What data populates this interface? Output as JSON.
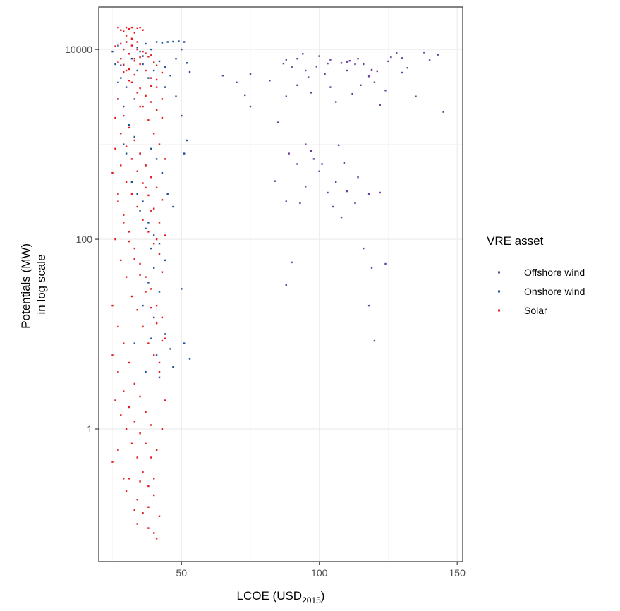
{
  "chart_data": {
    "type": "scatter",
    "title": "",
    "xlabel": "LCOE (USD",
    "xlabel_subscript": "2015",
    "xlabel_suffix": ")",
    "ylabel_line1": "Potentials (MW)",
    "ylabel_line2": "in log scale",
    "xlim": [
      20,
      152
    ],
    "ylim": [
      0.04,
      28000
    ],
    "yscale": "log",
    "x_ticks": [
      50,
      100,
      150
    ],
    "x_tick_labels": [
      "50",
      "100",
      "150"
    ],
    "y_ticks": [
      1,
      100,
      10000
    ],
    "y_tick_labels": [
      "1",
      "100",
      "10000"
    ],
    "grid": true,
    "legend": {
      "title": "VRE asset",
      "position": "right",
      "entries": [
        "Offshore wind",
        "Onshore wind",
        "Solar"
      ]
    },
    "series": [
      {
        "name": "Offshore wind",
        "color": "#6a3d9a",
        "points": [
          [
            65,
            5300
          ],
          [
            70,
            4500
          ],
          [
            73,
            3300
          ],
          [
            75,
            5500
          ],
          [
            75,
            2500
          ],
          [
            82,
            4700
          ],
          [
            85,
            1700
          ],
          [
            88,
            7800
          ],
          [
            88,
            3200
          ],
          [
            90,
            6500
          ],
          [
            92,
            8000
          ],
          [
            95,
            6000
          ],
          [
            97,
            3500
          ],
          [
            100,
            8500
          ],
          [
            102,
            5500
          ],
          [
            104,
            4000
          ],
          [
            106,
            2800
          ],
          [
            108,
            7200
          ],
          [
            110,
            6000
          ],
          [
            112,
            3400
          ],
          [
            114,
            8000
          ],
          [
            116,
            7000
          ],
          [
            118,
            5200
          ],
          [
            120,
            4500
          ],
          [
            122,
            2600
          ],
          [
            125,
            7500
          ],
          [
            128,
            9200
          ],
          [
            130,
            8100
          ],
          [
            132,
            6400
          ],
          [
            135,
            3200
          ],
          [
            138,
            9300
          ],
          [
            140,
            7700
          ],
          [
            143,
            8800
          ],
          [
            145,
            2200
          ],
          [
            124,
            3700
          ],
          [
            119,
            6100
          ],
          [
            111,
            7600
          ],
          [
            103,
            7100
          ],
          [
            96,
            5100
          ],
          [
            92,
            4200
          ],
          [
            87,
            7100
          ],
          [
            89,
            800
          ],
          [
            92,
            620
          ],
          [
            95,
            360
          ],
          [
            98,
            700
          ],
          [
            100,
            520
          ],
          [
            103,
            310
          ],
          [
            105,
            220
          ],
          [
            108,
            170
          ],
          [
            110,
            320
          ],
          [
            114,
            450
          ],
          [
            118,
            300
          ],
          [
            122,
            310
          ],
          [
            84,
            410
          ],
          [
            88,
            250
          ],
          [
            93,
            240
          ],
          [
            97,
            850
          ],
          [
            101,
            620
          ],
          [
            106,
            400
          ],
          [
            109,
            640
          ],
          [
            113,
            240
          ],
          [
            116,
            80
          ],
          [
            119,
            50
          ],
          [
            124,
            55
          ],
          [
            90,
            57
          ],
          [
            88,
            33
          ],
          [
            118,
            20
          ],
          [
            120,
            8.5
          ],
          [
            95,
            1000
          ],
          [
            107,
            980
          ],
          [
            99,
            6600
          ],
          [
            104,
            7800
          ],
          [
            113,
            7000
          ],
          [
            121,
            5900
          ],
          [
            126,
            8300
          ],
          [
            115,
            4200
          ],
          [
            110,
            7400
          ],
          [
            94,
            9000
          ],
          [
            130,
            5700
          ]
        ]
      },
      {
        "name": "Onshore wind",
        "color": "#1f4e9b",
        "points": [
          [
            25,
            9500
          ],
          [
            27,
            11000
          ],
          [
            30,
            12000
          ],
          [
            32,
            8000
          ],
          [
            34,
            6000
          ],
          [
            35,
            9500
          ],
          [
            37,
            11500
          ],
          [
            39,
            10000
          ],
          [
            41,
            12000
          ],
          [
            43,
            11800
          ],
          [
            45,
            12000
          ],
          [
            47,
            12100
          ],
          [
            49,
            12200
          ],
          [
            51,
            12000
          ],
          [
            52,
            7200
          ],
          [
            53,
            5800
          ],
          [
            28,
            6800
          ],
          [
            30,
            4000
          ],
          [
            33,
            3000
          ],
          [
            36,
            7000
          ],
          [
            38,
            5000
          ],
          [
            40,
            6000
          ],
          [
            42,
            7500
          ],
          [
            44,
            4000
          ],
          [
            46,
            5300
          ],
          [
            48,
            3200
          ],
          [
            50,
            2000
          ],
          [
            51,
            800
          ],
          [
            52,
            1100
          ],
          [
            29,
            2500
          ],
          [
            31,
            1600
          ],
          [
            33,
            1200
          ],
          [
            35,
            800
          ],
          [
            37,
            600
          ],
          [
            39,
            900
          ],
          [
            41,
            700
          ],
          [
            43,
            500
          ],
          [
            45,
            300
          ],
          [
            47,
            220
          ],
          [
            35,
            200
          ],
          [
            37,
            130
          ],
          [
            39,
            80
          ],
          [
            40,
            50
          ],
          [
            38,
            35
          ],
          [
            42,
            28
          ],
          [
            36,
            20
          ],
          [
            40,
            15
          ],
          [
            44,
            10
          ],
          [
            46,
            7
          ],
          [
            51,
            8
          ],
          [
            53,
            5.5
          ],
          [
            42,
            3.5
          ],
          [
            47,
            4.5
          ],
          [
            50,
            30
          ],
          [
            39,
            9
          ],
          [
            33,
            8
          ],
          [
            41,
            6
          ],
          [
            37,
            4
          ],
          [
            27,
            3000
          ],
          [
            31,
            9000
          ],
          [
            34,
            10500
          ],
          [
            36,
            8500
          ],
          [
            44,
            6500
          ],
          [
            48,
            8000
          ],
          [
            50,
            10000
          ],
          [
            26,
            7000
          ],
          [
            28,
            5000
          ],
          [
            30,
            800
          ],
          [
            32,
            400
          ],
          [
            34,
            300
          ],
          [
            36,
            250
          ],
          [
            38,
            150
          ],
          [
            40,
            110
          ],
          [
            42,
            90
          ],
          [
            44,
            60
          ],
          [
            27,
            4500
          ],
          [
            29,
            1000
          ]
        ]
      },
      {
        "name": "Solar",
        "color": "#e41a1c",
        "points": [
          [
            27,
            17000
          ],
          [
            28,
            16000
          ],
          [
            29,
            15500
          ],
          [
            30,
            17000
          ],
          [
            31,
            16500
          ],
          [
            32,
            17000
          ],
          [
            33,
            15000
          ],
          [
            34,
            16800
          ],
          [
            35,
            17000
          ],
          [
            36,
            16000
          ],
          [
            30,
            14000
          ],
          [
            32,
            13000
          ],
          [
            34,
            12000
          ],
          [
            29,
            10000
          ],
          [
            31,
            9000
          ],
          [
            33,
            8000
          ],
          [
            35,
            7000
          ],
          [
            37,
            6000
          ],
          [
            39,
            5000
          ],
          [
            41,
            4000
          ],
          [
            43,
            3000
          ],
          [
            28,
            8000
          ],
          [
            30,
            6000
          ],
          [
            32,
            4500
          ],
          [
            34,
            3500
          ],
          [
            36,
            2500
          ],
          [
            38,
            1800
          ],
          [
            40,
            1300
          ],
          [
            42,
            1000
          ],
          [
            44,
            700
          ],
          [
            27,
            3000
          ],
          [
            29,
            2000
          ],
          [
            31,
            1500
          ],
          [
            33,
            1100
          ],
          [
            35,
            800
          ],
          [
            37,
            600
          ],
          [
            39,
            450
          ],
          [
            41,
            350
          ],
          [
            43,
            260
          ],
          [
            26,
            900
          ],
          [
            28,
            600
          ],
          [
            30,
            400
          ],
          [
            32,
            300
          ],
          [
            34,
            220
          ],
          [
            36,
            160
          ],
          [
            38,
            120
          ],
          [
            40,
            90
          ],
          [
            42,
            70
          ],
          [
            25,
            500
          ],
          [
            27,
            300
          ],
          [
            29,
            180
          ],
          [
            31,
            120
          ],
          [
            33,
            80
          ],
          [
            35,
            55
          ],
          [
            37,
            40
          ],
          [
            39,
            30
          ],
          [
            41,
            20
          ],
          [
            43,
            15
          ],
          [
            26,
            100
          ],
          [
            28,
            60
          ],
          [
            30,
            40
          ],
          [
            32,
            25
          ],
          [
            34,
            18
          ],
          [
            36,
            12
          ],
          [
            38,
            8
          ],
          [
            40,
            6
          ],
          [
            42,
            4
          ],
          [
            25,
            20
          ],
          [
            27,
            12
          ],
          [
            29,
            8
          ],
          [
            31,
            5
          ],
          [
            33,
            3
          ],
          [
            35,
            2.2
          ],
          [
            37,
            1.5
          ],
          [
            39,
            1.1
          ],
          [
            25,
            6
          ],
          [
            27,
            4
          ],
          [
            29,
            2.5
          ],
          [
            31,
            1.7
          ],
          [
            33,
            1.2
          ],
          [
            35,
            0.9
          ],
          [
            37,
            0.7
          ],
          [
            39,
            0.5
          ],
          [
            26,
            2
          ],
          [
            28,
            1.4
          ],
          [
            30,
            1
          ],
          [
            32,
            0.7
          ],
          [
            34,
            0.5
          ],
          [
            36,
            0.35
          ],
          [
            38,
            0.25
          ],
          [
            40,
            0.2
          ],
          [
            25,
            0.45
          ],
          [
            29,
            0.3
          ],
          [
            31,
            0.3
          ],
          [
            34,
            0.18
          ],
          [
            36,
            0.13
          ],
          [
            38,
            0.09
          ],
          [
            40,
            0.08
          ],
          [
            41,
            0.07
          ],
          [
            34,
            0.1
          ],
          [
            30,
            0.22
          ],
          [
            38,
            0.15
          ],
          [
            33,
            0.14
          ],
          [
            40,
            0.3
          ],
          [
            35,
            0.28
          ],
          [
            27,
            0.6
          ],
          [
            42,
            0.12
          ],
          [
            43,
            1.0
          ],
          [
            41,
            0.6
          ],
          [
            44,
            2.0
          ],
          [
            42,
            5
          ],
          [
            44,
            9
          ],
          [
            43,
            45
          ],
          [
            41,
            100
          ],
          [
            39,
            200
          ],
          [
            37,
            350
          ],
          [
            35,
            2500
          ],
          [
            37,
            3200
          ],
          [
            39,
            4100
          ],
          [
            41,
            4800
          ],
          [
            33,
            5400
          ],
          [
            31,
            6200
          ],
          [
            29,
            6900
          ],
          [
            33,
            7600
          ],
          [
            35,
            8300
          ],
          [
            37,
            9100
          ],
          [
            39,
            8700
          ],
          [
            41,
            6800
          ],
          [
            43,
            5700
          ],
          [
            30,
            12000
          ],
          [
            32,
            11000
          ],
          [
            34,
            10000
          ],
          [
            36,
            9500
          ],
          [
            38,
            8400
          ],
          [
            40,
            7300
          ],
          [
            28,
            11500
          ],
          [
            26,
            10800
          ],
          [
            27,
            7300
          ],
          [
            29,
            5800
          ],
          [
            31,
            4700
          ],
          [
            35,
            3900
          ],
          [
            37,
            3300
          ],
          [
            39,
            2800
          ],
          [
            41,
            2300
          ],
          [
            43,
            1900
          ],
          [
            26,
            1900
          ],
          [
            28,
            1300
          ],
          [
            30,
            950
          ],
          [
            32,
            700
          ],
          [
            34,
            520
          ],
          [
            36,
            390
          ],
          [
            38,
            290
          ],
          [
            40,
            210
          ],
          [
            42,
            150
          ],
          [
            44,
            110
          ],
          [
            27,
            250
          ],
          [
            29,
            150
          ],
          [
            31,
            95
          ],
          [
            33,
            62
          ],
          [
            35,
            42
          ],
          [
            37,
            28
          ],
          [
            39,
            19
          ],
          [
            41,
            13
          ],
          [
            43,
            8.5
          ]
        ]
      }
    ]
  }
}
